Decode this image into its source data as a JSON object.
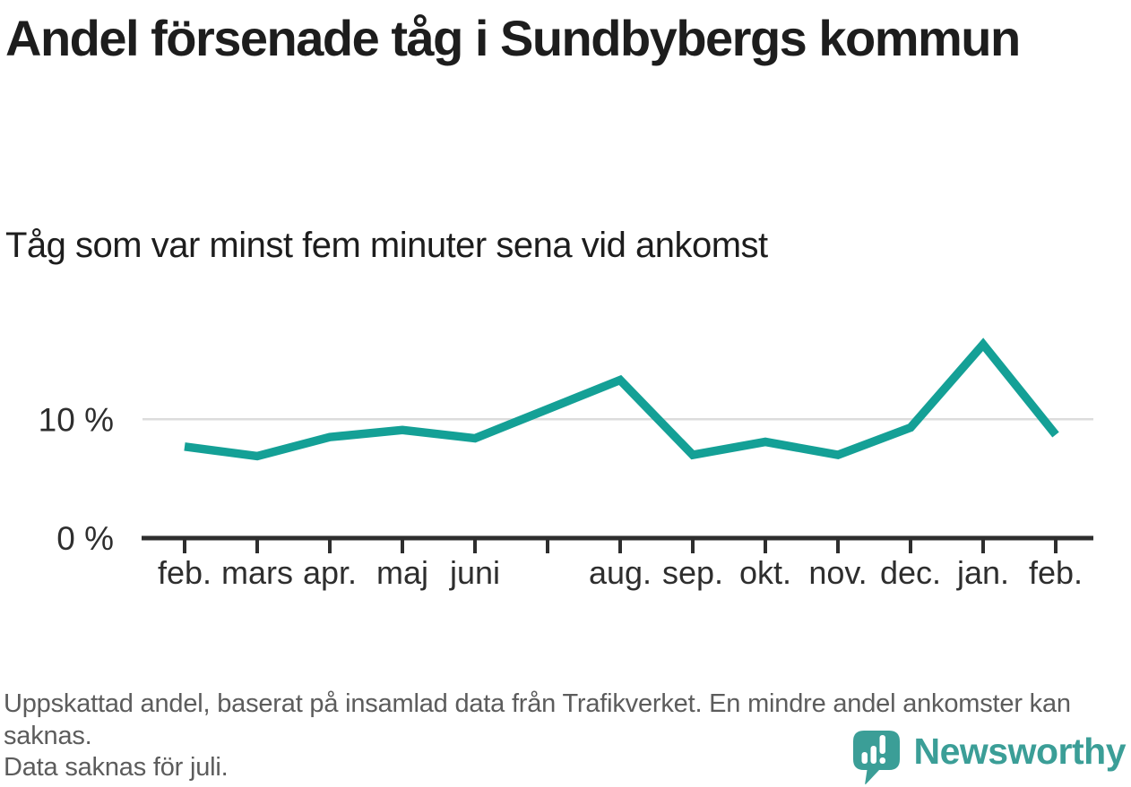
{
  "header": {
    "title": "Andel försenade tåg i Sundbybergs kommun",
    "subtitle": "Tåg som var minst fem minuter sena vid ankomst"
  },
  "chart_data": {
    "type": "line",
    "title": "Andel försenade tåg i Sundbybergs kommun",
    "subtitle": "Tåg som var minst fem minuter sena vid ankomst",
    "unit": "%",
    "categories": [
      "feb.",
      "mars",
      "apr.",
      "maj",
      "juni",
      "juli",
      "aug.",
      "sep.",
      "okt.",
      "nov.",
      "dec.",
      "jan.",
      "feb."
    ],
    "tick_labels": [
      "feb.",
      "mars",
      "apr.",
      "maj",
      "juni",
      "",
      "aug.",
      "sep.",
      "okt.",
      "nov.",
      "dec.",
      "jan.",
      "feb."
    ],
    "values": [
      7.7,
      6.9,
      8.5,
      9.1,
      8.4,
      null,
      13.3,
      7.0,
      8.1,
      7.0,
      9.3,
      16.3,
      8.7
    ],
    "missing_months": [
      "juli"
    ],
    "ylabel_ticks": [
      {
        "value": 10,
        "label": "10 %"
      },
      {
        "value": 0,
        "label": "0 %"
      }
    ],
    "grid_values": [
      10
    ],
    "ylim": [
      0,
      18.5
    ],
    "legend": "none",
    "grid": "horizontal-only"
  },
  "footer": {
    "note": "Uppskattad andel, baserat på insamlad data från Trafikverket. En mindre andel ankomster kan saknas.",
    "note2": "Data saknas för juli.",
    "logo_text": "Newsworthy"
  },
  "colors": {
    "line": "#14a096",
    "logo": "#3b9e97",
    "title_text": "#1d1d1d",
    "axis_text": "#2e2e2e",
    "axis_line": "#2e2e2e",
    "gridline": "#dcdcdc",
    "note_text": "#5c5c5c",
    "background": "#ffffff"
  }
}
